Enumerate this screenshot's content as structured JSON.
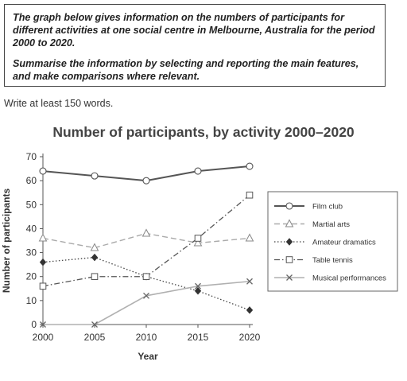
{
  "prompt": {
    "paragraph1": "The graph below gives information on the numbers of participants for different activities at one social centre in Melbourne, Australia for the period 2000 to 2020.",
    "paragraph2": "Summarise the information by selecting and reporting the main features, and make comparisons where relevant."
  },
  "instruction": "Write at least 150 words.",
  "colors": {
    "axis": "#555555",
    "text": "#333333"
  },
  "chart_data": {
    "type": "line",
    "title": "Number of participants, by activity 2000–2020",
    "xlabel": "Year",
    "ylabel": "Number of participants",
    "x": [
      2000,
      2005,
      2010,
      2015,
      2020
    ],
    "xlim": [
      2000,
      2020
    ],
    "ylim": [
      0,
      70
    ],
    "yticks": [
      0,
      10,
      20,
      30,
      40,
      50,
      60,
      70
    ],
    "grid": false,
    "legend_position": "right",
    "series": [
      {
        "name": "Film club",
        "values": [
          64,
          62,
          60,
          64,
          66
        ],
        "marker": "circle",
        "dash": "solid",
        "color": "#555555",
        "width": 2
      },
      {
        "name": "Martial arts",
        "values": [
          36,
          32,
          38,
          34,
          36
        ],
        "marker": "triangle",
        "dash": "dashed",
        "color": "#aaaaaa",
        "width": 1.4
      },
      {
        "name": "Amateur dramatics",
        "values": [
          26,
          28,
          20,
          14,
          6
        ],
        "marker": "diamond",
        "dash": "dotted",
        "color": "#444444",
        "width": 1.3
      },
      {
        "name": "Table tennis",
        "values": [
          16,
          20,
          20,
          36,
          54
        ],
        "marker": "square",
        "dash": "dashdot",
        "color": "#555555",
        "width": 1.3
      },
      {
        "name": "Musical performances",
        "values": [
          0,
          0,
          12,
          16,
          18
        ],
        "marker": "cross",
        "dash": "solid",
        "color": "#b0b0b0",
        "width": 1.6
      }
    ]
  }
}
